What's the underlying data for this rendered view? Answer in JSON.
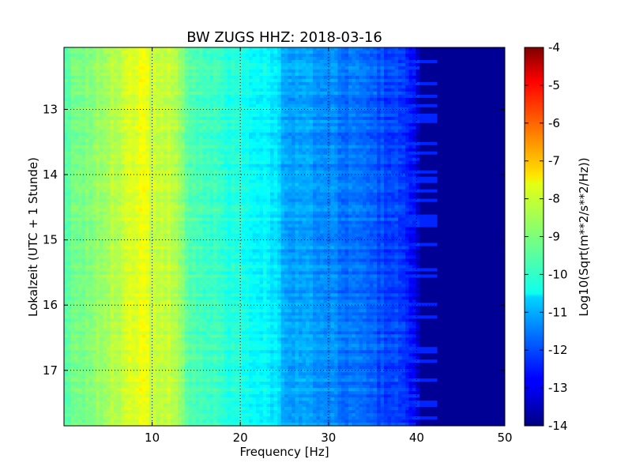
{
  "chart_data": {
    "type": "heatmap",
    "title": "BW ZUGS HHZ: 2018-03-16",
    "xlabel": "Frequency [Hz]",
    "ylabel": "Lokalzeit (UTC + 1 Stunde)",
    "xlim": [
      0,
      50
    ],
    "ylim": [
      12.05,
      17.85
    ],
    "y_inverted": true,
    "x_ticks": [
      "10",
      "20",
      "30",
      "40",
      "50"
    ],
    "x_tick_values": [
      10,
      20,
      30,
      40,
      50
    ],
    "y_ticks": [
      "13",
      "14",
      "15",
      "16",
      "17"
    ],
    "y_tick_values": [
      13,
      14,
      15,
      16,
      17
    ],
    "grid": true,
    "colormap": "jet",
    "colorbar": {
      "label": "Log10(Sqrt(m**2/s**2/Hz))",
      "range": [
        -14,
        -4
      ],
      "ticks": [
        "-4",
        "-5",
        "-6",
        "-7",
        "-8",
        "-9",
        "-10",
        "-11",
        "-12",
        "-13",
        "-14"
      ],
      "tick_values": [
        -4,
        -5,
        -6,
        -7,
        -8,
        -9,
        -10,
        -11,
        -12,
        -13,
        -14
      ]
    },
    "spectrum_profile": {
      "frequency_hz": [
        0,
        2,
        5,
        8,
        9,
        10,
        12,
        13,
        14,
        16,
        20,
        23,
        24,
        25,
        28,
        30,
        33,
        36,
        38,
        39,
        40,
        40.5,
        50
      ],
      "log10_amplitude": [
        -9.3,
        -9.1,
        -8.6,
        -8.0,
        -7.9,
        -8.3,
        -8.4,
        -8.6,
        -9.3,
        -9.6,
        -10.0,
        -10.3,
        -10.6,
        -11.0,
        -11.2,
        -11.4,
        -11.7,
        -12.0,
        -12.2,
        -12.5,
        -13.0,
        -13.8,
        -13.8
      ]
    }
  }
}
